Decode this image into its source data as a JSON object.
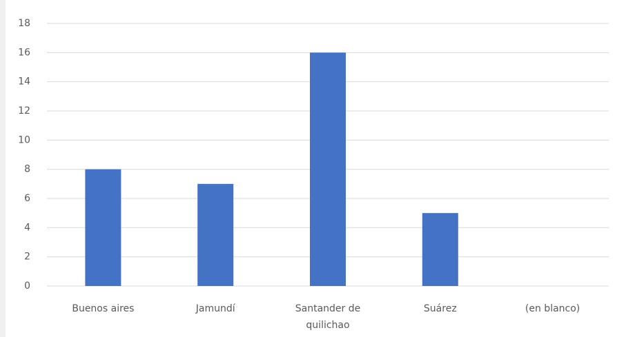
{
  "chart_data": {
    "type": "bar",
    "categories": [
      "Buenos aires",
      "Jamundí",
      "Santander de quilichao",
      "Suárez",
      "(en blanco)"
    ],
    "values": [
      8,
      7,
      16,
      5,
      0
    ],
    "color": "#4472c4",
    "ylim": [
      0,
      18
    ],
    "yticks": [
      0,
      2,
      4,
      6,
      8,
      10,
      12,
      14,
      16,
      18
    ],
    "grid": true
  }
}
